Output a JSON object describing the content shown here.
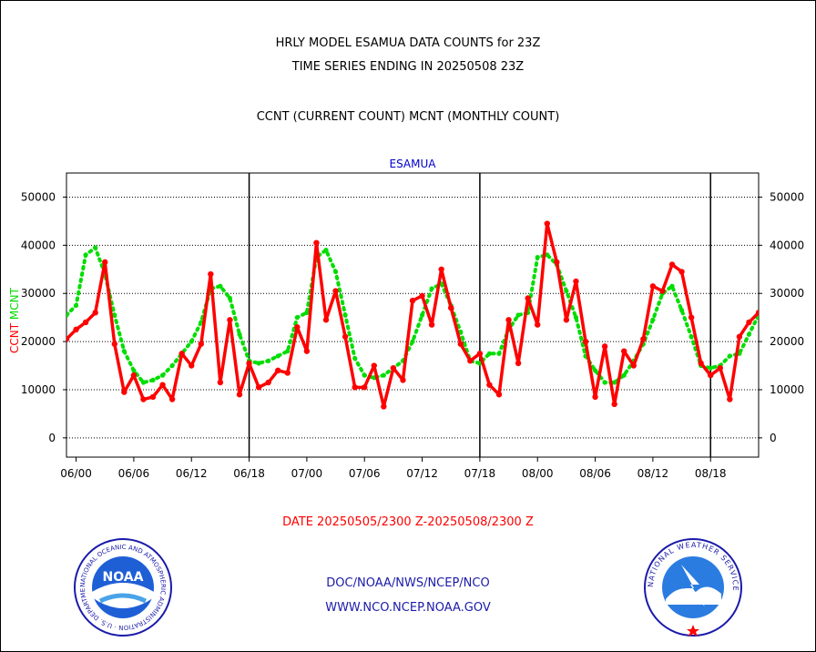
{
  "title_lines": [
    "HRLY MODEL ESAMUA DATA COUNTS for 23Z",
    "TIME SERIES ENDING IN 20250508 23Z"
  ],
  "subtitle": "CCNT (CURRENT COUNT) MCNT (MONTHLY COUNT)",
  "date_range": "DATE 20250505/2300 Z-20250508/2300 Z",
  "footer": {
    "org": "DOC/NOAA/NWS/NCEP/NCO",
    "website": "WWW.NCO.NCEP.NOAA.GOV"
  },
  "logos": {
    "left_label": "NOAA",
    "left_ring_text": "NATIONAL OCEANIC AND ATMOSPHERIC ADMINISTRATION · U.S. DEPARTMENT OF COMMERCE",
    "right_ring_text": "NATIONAL WEATHER SERVICE"
  },
  "colors": {
    "ccnt": "#ff0000",
    "mcnt": "#00dd00",
    "panel_title": "#0000cc",
    "footer_text": "#1a1aaa",
    "date_text": "#ff0000"
  },
  "chart_data": {
    "type": "line",
    "title": "ESAMUA",
    "ylabel_left_parts": [
      {
        "text": "CCNT",
        "color": "#ff0000"
      },
      {
        "text": "MCNT",
        "color": "#00dd00"
      }
    ],
    "ylim": [
      -4000,
      55000
    ],
    "y_ticks": [
      0,
      10000,
      20000,
      30000,
      40000,
      50000
    ],
    "y_tick_labels": [
      "0",
      "10000",
      "20000",
      "30000",
      "40000",
      "50000"
    ],
    "x_ticks": [
      0,
      6,
      12,
      18,
      24,
      30,
      36,
      42,
      48,
      54,
      60,
      66
    ],
    "x_tick_labels": [
      "06/00",
      "06/06",
      "06/12",
      "06/18",
      "07/00",
      "07/06",
      "07/12",
      "07/18",
      "08/00",
      "08/06",
      "08/12",
      "08/18"
    ],
    "xlim": [
      -1,
      71
    ],
    "day_separators": [
      18,
      42,
      66
    ],
    "grid": true,
    "series": [
      {
        "name": "CCNT",
        "values": [
          20500,
          22500,
          24000,
          26000,
          36500,
          19500,
          9500,
          13000,
          8000,
          8500,
          11000,
          8000,
          17500,
          15000,
          19500,
          34000,
          11500,
          24500,
          9000,
          15500,
          10500,
          11500,
          14000,
          13500,
          23000,
          18000,
          40500,
          24500,
          30500,
          21000,
          10500,
          10500,
          15000,
          6500,
          14500,
          12000,
          28500,
          29500,
          23500,
          35000,
          27000,
          19500,
          16000,
          17500,
          11000,
          9000,
          24500,
          15500,
          29000,
          23500,
          44500,
          36500,
          24500,
          32500,
          20000,
          8500,
          19000,
          7000,
          18000,
          15000,
          20500,
          31500,
          30500,
          36000,
          34500,
          25000,
          15500,
          13000,
          14500,
          8000,
          21000,
          24000,
          26000
        ],
        "x_start": -1
      },
      {
        "name": "MCNT",
        "values": [
          25500,
          27500,
          38000,
          39500,
          34000,
          25500,
          18000,
          14000,
          11500,
          12000,
          13000,
          15000,
          17500,
          20000,
          24000,
          31000,
          31500,
          29000,
          21500,
          16000,
          15500,
          16000,
          17000,
          18000,
          25000,
          26000,
          37500,
          39000,
          34500,
          25500,
          16500,
          13000,
          12500,
          13000,
          14500,
          16000,
          20000,
          25500,
          31000,
          32000,
          27500,
          22000,
          16000,
          15500,
          17500,
          17500,
          22500,
          25500,
          26000,
          37500,
          38000,
          36000,
          30500,
          25000,
          17000,
          14000,
          11500,
          11500,
          13000,
          16000,
          19500,
          24500,
          30000,
          31500,
          26500,
          21000,
          15000,
          14500,
          15000,
          17000,
          17500,
          21500,
          25500
        ],
        "x_start": -1
      }
    ]
  }
}
